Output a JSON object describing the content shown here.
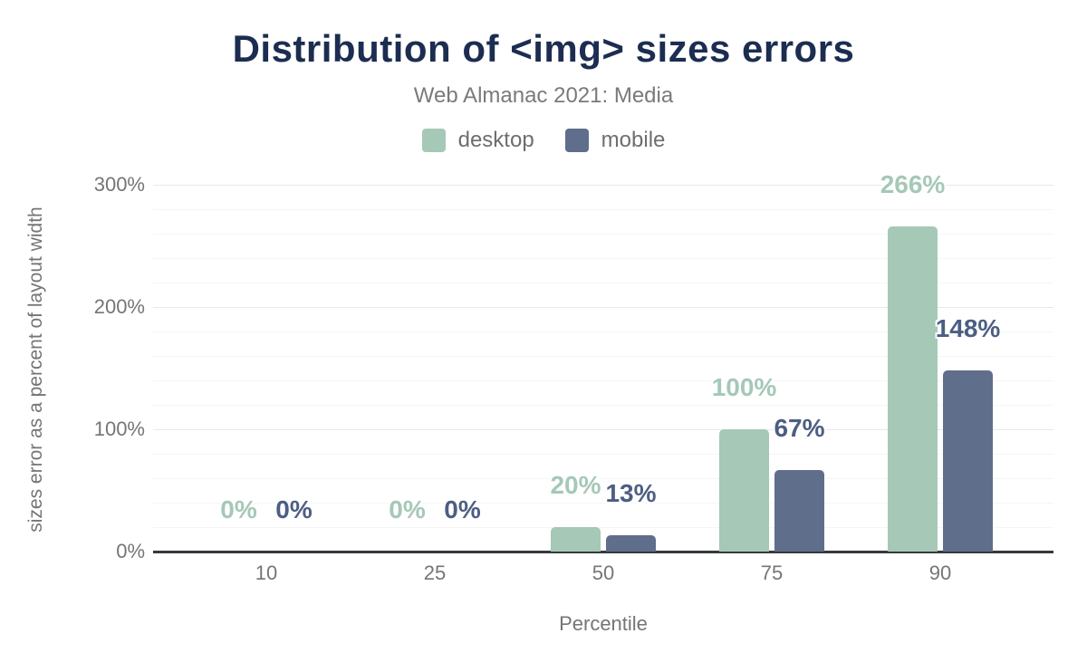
{
  "header": {
    "title": "Distribution of <img> sizes errors",
    "subtitle": "Web Almanac 2021: Media"
  },
  "legend": [
    {
      "label": "desktop",
      "color": "#a5c8b7"
    },
    {
      "label": "mobile",
      "color": "#5f6e8a"
    }
  ],
  "colors": {
    "title_text": "#1c2d51",
    "axis_text": "#757575",
    "axis_line": "#37383d",
    "gridline_major": "#e9e9e9",
    "gridline_minor": "#f5f5f5",
    "desktop_bar": "#a5c8b7",
    "desktop_label": "#a5c8b7",
    "mobile_bar": "#5f6e8a",
    "mobile_label": "#4d5e83"
  },
  "chart_data": {
    "type": "bar",
    "title": "Distribution of <img> sizes errors",
    "subtitle": "Web Almanac 2021: Media",
    "categories": [
      "10",
      "25",
      "50",
      "75",
      "90"
    ],
    "series": [
      {
        "name": "desktop",
        "color": "#a5c8b7",
        "label_color": "#a5c8b7",
        "values": [
          0,
          0,
          20,
          100,
          266
        ]
      },
      {
        "name": "mobile",
        "color": "#5f6e8a",
        "label_color": "#4d5e83",
        "values": [
          0,
          0,
          13,
          67,
          148
        ]
      }
    ],
    "data_labels": {
      "desktop": [
        "0%",
        "0%",
        "20%",
        "100%",
        "266%"
      ],
      "mobile": [
        "0%",
        "0%",
        "13%",
        "67%",
        "148%"
      ]
    },
    "xlabel": "Percentile",
    "ylabel": "sizes error as a percent of layout width",
    "ylim": [
      0,
      300
    ],
    "ytick_values": [
      0,
      100,
      200,
      300
    ],
    "ytick_labels": [
      "0%",
      "100%",
      "200%",
      "300%"
    ],
    "minor_grid_step": 20,
    "major_grid_step": 100,
    "grid": "horizontal",
    "legend_position": "top-center"
  }
}
